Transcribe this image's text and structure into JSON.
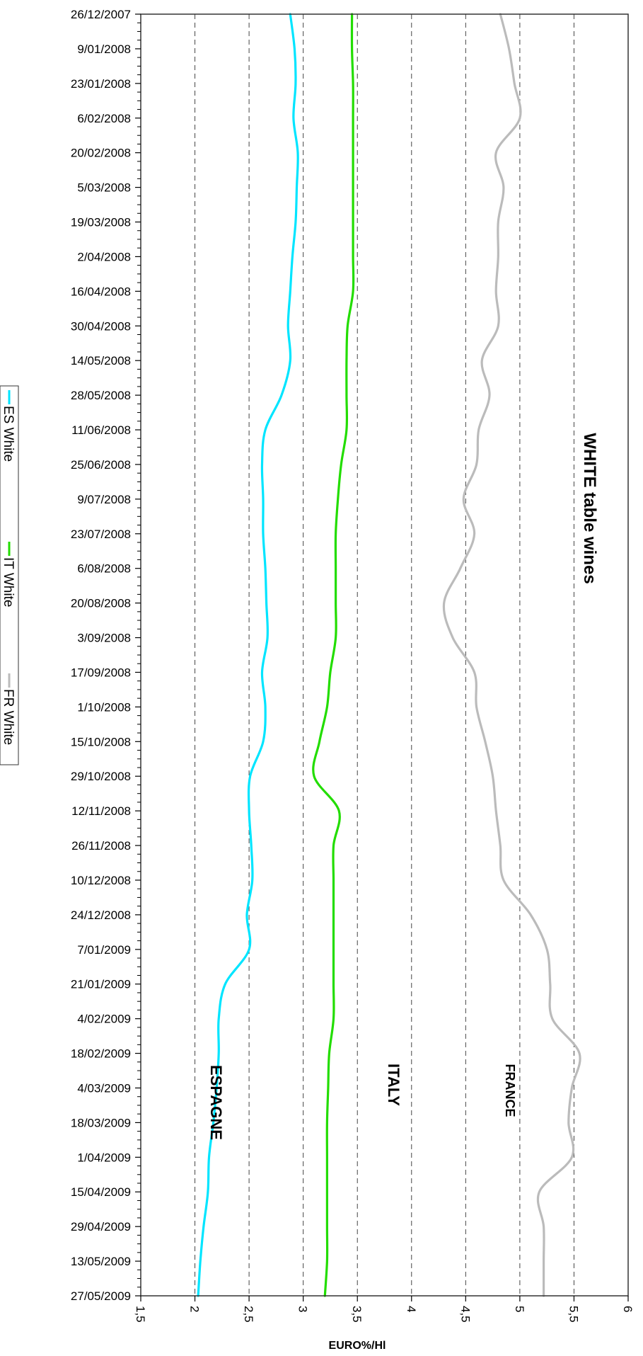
{
  "chart_data": {
    "type": "line",
    "orientation": "rotated-90",
    "title": "WHITE table wines",
    "xlabel": "",
    "ylabel": "EURO%/Hl",
    "ylim": [
      1.5,
      6
    ],
    "yticks": [
      "1,5",
      "2",
      "2,5",
      "3",
      "3,5",
      "4",
      "4,5",
      "5",
      "5,5",
      "6"
    ],
    "ytick_values": [
      1.5,
      2,
      2.5,
      3,
      3.5,
      4,
      4.5,
      5,
      5.5,
      6
    ],
    "grid": "dashed vertical lines at 2, 2,5, 3, 3,5, 4, 4,5, 5, 5,5",
    "legend_position": "left",
    "categories": [
      "26/12/2007",
      "9/01/2008",
      "23/01/2008",
      "6/02/2008",
      "20/02/2008",
      "5/03/2008",
      "19/03/2008",
      "2/04/2008",
      "16/04/2008",
      "30/04/2008",
      "14/05/2008",
      "28/05/2008",
      "11/06/2008",
      "25/06/2008",
      "9/07/2008",
      "23/07/2008",
      "6/08/2008",
      "20/08/2008",
      "3/09/2008",
      "17/09/2008",
      "1/10/2008",
      "15/10/2008",
      "29/10/2008",
      "12/11/2008",
      "26/11/2008",
      "10/12/2008",
      "24/12/2008",
      "7/01/2009",
      "21/01/2009",
      "4/02/2009",
      "18/02/2009",
      "4/03/2009",
      "18/03/2009",
      "1/04/2009",
      "15/04/2009",
      "29/04/2009",
      "13/05/2009",
      "27/05/2009"
    ],
    "series": [
      {
        "name": "ES White",
        "color": "#00e5ff",
        "values": [
          2.88,
          2.92,
          2.93,
          2.91,
          2.95,
          2.94,
          2.93,
          2.9,
          2.88,
          2.86,
          2.88,
          2.8,
          2.65,
          2.62,
          2.63,
          2.63,
          2.65,
          2.66,
          2.67,
          2.62,
          2.65,
          2.63,
          2.51,
          2.5,
          2.52,
          2.53,
          2.48,
          2.5,
          2.28,
          2.22,
          2.22,
          2.2,
          2.17,
          2.13,
          2.12,
          2.08,
          2.05,
          2.03
        ]
      },
      {
        "name": "IT White",
        "color": "#22dd00",
        "values": [
          3.45,
          3.45,
          3.46,
          3.46,
          3.46,
          3.46,
          3.46,
          3.46,
          3.46,
          3.41,
          3.4,
          3.4,
          3.4,
          3.35,
          3.32,
          3.3,
          3.3,
          3.3,
          3.3,
          3.25,
          3.22,
          3.15,
          3.1,
          3.33,
          3.28,
          3.28,
          3.28,
          3.28,
          3.28,
          3.28,
          3.24,
          3.23,
          3.22,
          3.22,
          3.22,
          3.22,
          3.22,
          3.2
        ]
      },
      {
        "name": "FR White",
        "color": "#bbbbbb",
        "values": [
          4.82,
          4.9,
          4.95,
          5.0,
          4.78,
          4.85,
          4.8,
          4.8,
          4.78,
          4.8,
          4.65,
          4.72,
          4.62,
          4.6,
          4.48,
          4.58,
          4.45,
          4.3,
          4.38,
          4.58,
          4.6,
          4.68,
          4.75,
          4.78,
          4.82,
          4.85,
          5.1,
          5.25,
          5.28,
          5.3,
          5.55,
          5.48,
          5.45,
          5.48,
          5.18,
          5.22,
          5.22,
          5.22
        ]
      }
    ],
    "annotations": [
      "ESPAGNE",
      "ITALY",
      "FRANCE"
    ]
  }
}
